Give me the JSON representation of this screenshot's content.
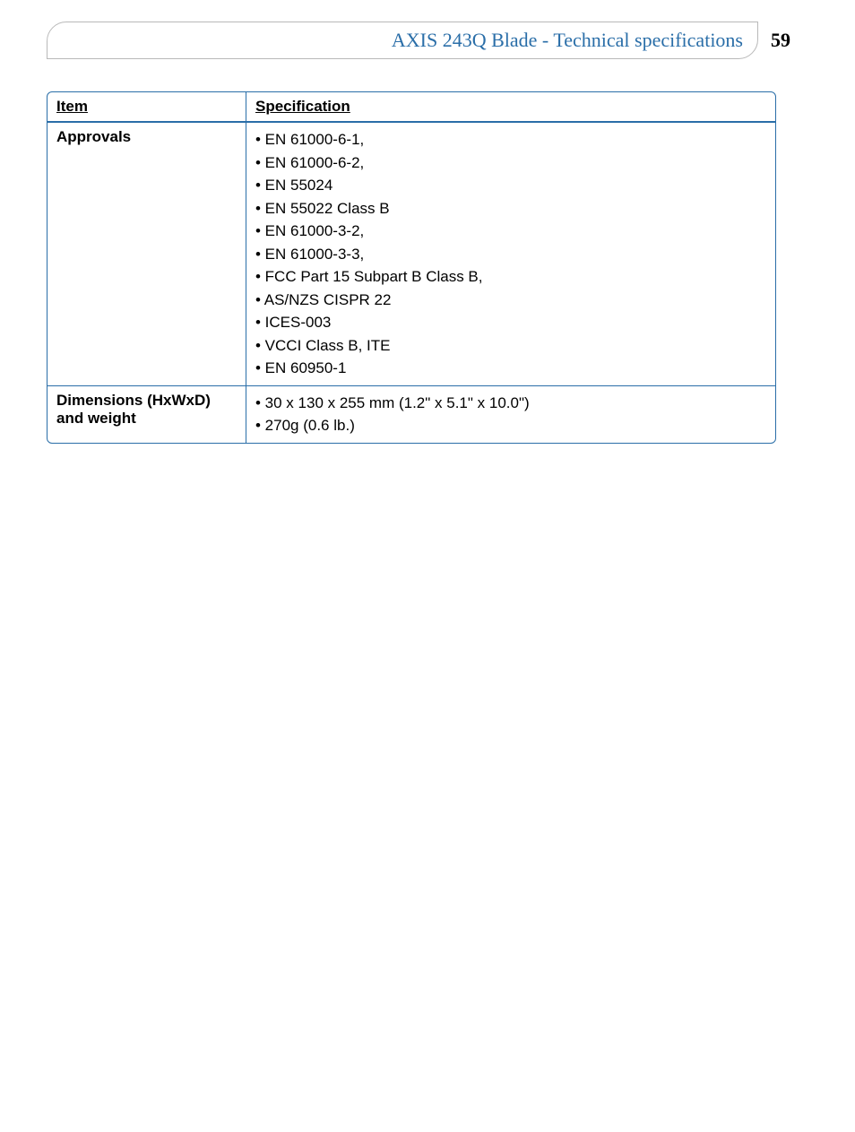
{
  "header": {
    "title": "AXIS 243Q Blade - Technical specifications",
    "page_number": "59"
  },
  "table": {
    "headers": {
      "item": "Item",
      "spec": "Specification"
    },
    "rows": [
      {
        "item": "Approvals",
        "lines": [
          "• EN 61000-6-1,",
          "• EN 61000-6-2,",
          "• EN 55024",
          "•  EN 55022 Class B",
          "•  EN 61000-3-2,",
          "•  EN 61000-3-3,",
          "•  FCC Part 15 Subpart B Class B,",
          "•  AS/NZS CISPR 22",
          "•  ICES-003",
          "•  VCCI Class B, ITE",
          "•  EN 60950-1"
        ]
      },
      {
        "item": "Dimensions (HxWxD) and weight",
        "lines": [
          "• 30 x 130 x 255 mm (1.2\" x 5.1\" x 10.0\")",
          "• 270g (0.6 lb.)"
        ]
      }
    ]
  },
  "colors": {
    "border": "#2a6ea8",
    "header_text": "#2a6ea8",
    "pill_border": "#b9b9b9"
  },
  "fonts": {
    "header_family": "Georgia, serif",
    "body_family": "Segoe UI, Helvetica Neue, Arial, sans-serif",
    "header_size_pt": 16,
    "body_size_pt": 13
  }
}
